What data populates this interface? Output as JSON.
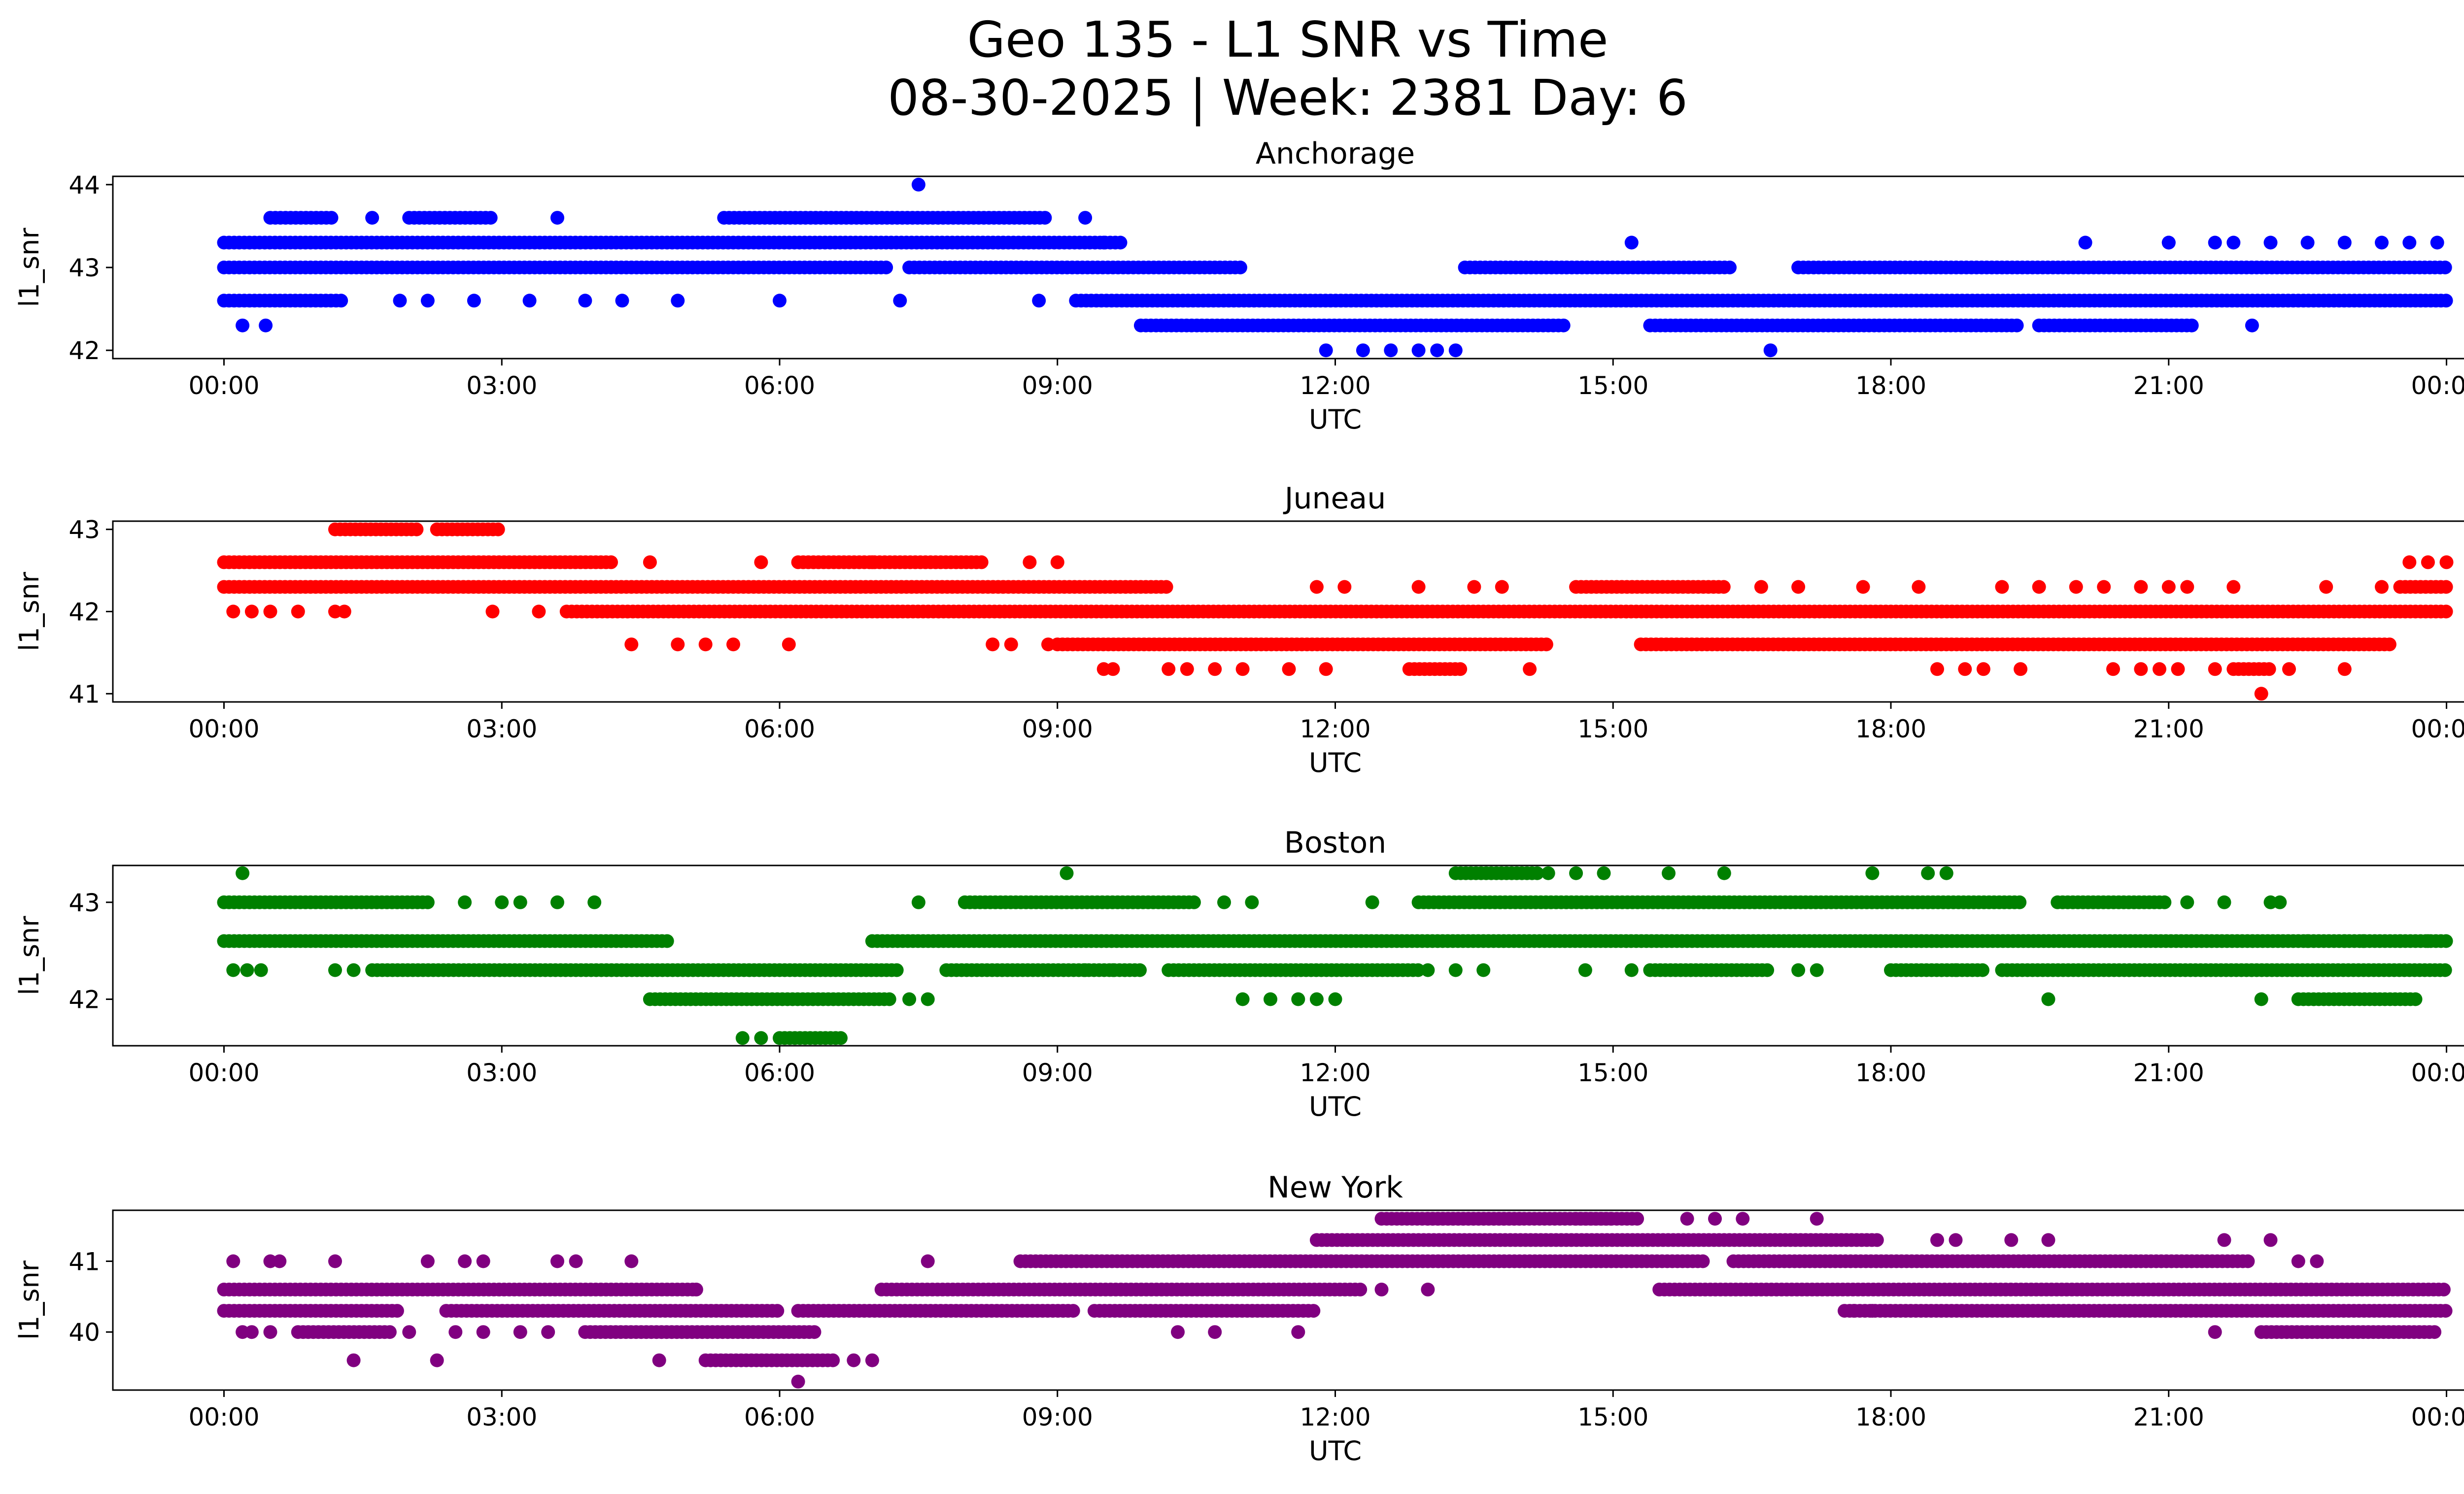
{
  "title_line1": "Geo 135 - L1 SNR vs Time",
  "title_line2": "08-30-2025 | Week: 2381 Day: 6",
  "chart_data": [
    {
      "type": "scatter",
      "title": "Anchorage",
      "xlabel": "UTC",
      "ylabel": "l1_snr",
      "color": "#0000ff",
      "xticks": [
        "00:00",
        "03:00",
        "06:00",
        "09:00",
        "12:00",
        "15:00",
        "18:00",
        "21:00",
        "00:00"
      ],
      "xlim_hours": [
        -1.2,
        25.2
      ],
      "ylim": [
        41.9,
        44.1
      ],
      "yticks": [
        42,
        43,
        44
      ],
      "levels": [
        {
          "y": 43.3,
          "runs": [
            [
              0,
              9.7
            ]
          ]
        },
        {
          "y": 43.0,
          "runs": [
            [
              0,
              7.2
            ],
            [
              7.4,
              11.0
            ],
            [
              13.4,
              16.3
            ],
            [
              17.0,
              24.0
            ]
          ]
        },
        {
          "y": 42.6,
          "runs": [
            [
              0,
              1.3
            ],
            [
              9.2,
              24.0
            ]
          ]
        },
        {
          "y": 42.3,
          "runs": [
            [
              9.9,
              14.5
            ],
            [
              15.4,
              19.4
            ],
            [
              19.6,
              21.3
            ]
          ]
        },
        {
          "y": 43.6,
          "runs": [
            [
              0.5,
              1.2
            ],
            [
              2.0,
              2.9
            ],
            [
              5.4,
              8.9
            ]
          ]
        }
      ],
      "sparse": [
        [
          0.2,
          42.3
        ],
        [
          0.45,
          42.3
        ],
        [
          1.6,
          43.6
        ],
        [
          1.9,
          42.6
        ],
        [
          2.2,
          42.6
        ],
        [
          2.7,
          42.6
        ],
        [
          3.3,
          42.6
        ],
        [
          3.6,
          43.6
        ],
        [
          3.9,
          42.6
        ],
        [
          4.3,
          42.6
        ],
        [
          4.9,
          42.6
        ],
        [
          6.0,
          42.6
        ],
        [
          7.3,
          42.6
        ],
        [
          7.5,
          44.0
        ],
        [
          8.8,
          42.6
        ],
        [
          9.3,
          43.6
        ],
        [
          9.5,
          43.3
        ],
        [
          11.9,
          42.0
        ],
        [
          12.3,
          42.0
        ],
        [
          12.6,
          42.0
        ],
        [
          12.9,
          42.0
        ],
        [
          13.1,
          42.0
        ],
        [
          13.3,
          42.0
        ],
        [
          15.2,
          43.3
        ],
        [
          16.7,
          42.0
        ],
        [
          20.1,
          43.3
        ],
        [
          21.0,
          43.3
        ],
        [
          21.9,
          42.3
        ],
        [
          21.0,
          43.3
        ],
        [
          22.1,
          43.3
        ],
        [
          22.5,
          43.3
        ],
        [
          22.9,
          43.3
        ],
        [
          23.3,
          43.3
        ],
        [
          23.6,
          43.3
        ],
        [
          23.9,
          43.3
        ],
        [
          21.5,
          43.3
        ],
        [
          21.7,
          43.3
        ]
      ]
    },
    {
      "type": "scatter",
      "title": "Juneau",
      "xlabel": "UTC",
      "ylabel": "l1_snr",
      "color": "#ff0000",
      "xticks": [
        "00:00",
        "03:00",
        "06:00",
        "09:00",
        "12:00",
        "15:00",
        "18:00",
        "21:00",
        "00:00"
      ],
      "xlim_hours": [
        -1.2,
        25.2
      ],
      "ylim": [
        40.9,
        43.1
      ],
      "yticks": [
        41,
        42,
        43
      ],
      "levels": [
        {
          "y": 42.6,
          "runs": [
            [
              0,
              4.2
            ],
            [
              6.2,
              8.2
            ]
          ]
        },
        {
          "y": 42.3,
          "runs": [
            [
              0,
              10.2
            ],
            [
              14.6,
              16.2
            ],
            [
              23.5,
              24.0
            ]
          ]
        },
        {
          "y": 42.0,
          "runs": [
            [
              3.7,
              24.0
            ]
          ]
        },
        {
          "y": 41.6,
          "runs": [
            [
              9.0,
              14.3
            ],
            [
              15.3,
              23.4
            ]
          ]
        },
        {
          "y": 43.0,
          "runs": [
            [
              1.2,
              2.1
            ],
            [
              2.3,
              3.0
            ]
          ]
        },
        {
          "y": 41.3,
          "runs": [
            [
              12.8,
              13.4
            ],
            [
              21.7,
              22.1
            ]
          ]
        }
      ],
      "sparse": [
        [
          0.1,
          42.0
        ],
        [
          0.3,
          42.0
        ],
        [
          0.5,
          42.0
        ],
        [
          0.8,
          42.0
        ],
        [
          1.2,
          42.0
        ],
        [
          1.3,
          42.0
        ],
        [
          2.9,
          42.0
        ],
        [
          3.4,
          42.0
        ],
        [
          4.4,
          41.6
        ],
        [
          4.6,
          42.6
        ],
        [
          4.9,
          41.6
        ],
        [
          5.2,
          41.6
        ],
        [
          5.5,
          41.6
        ],
        [
          5.8,
          42.6
        ],
        [
          6.1,
          41.6
        ],
        [
          7.0,
          42.6
        ],
        [
          8.3,
          41.6
        ],
        [
          8.5,
          41.6
        ],
        [
          8.7,
          42.6
        ],
        [
          8.9,
          41.6
        ],
        [
          9.0,
          42.6
        ],
        [
          9.5,
          41.3
        ],
        [
          9.6,
          41.3
        ],
        [
          10.2,
          41.3
        ],
        [
          10.4,
          41.3
        ],
        [
          10.7,
          41.3
        ],
        [
          11.0,
          41.3
        ],
        [
          11.5,
          41.3
        ],
        [
          11.8,
          42.3
        ],
        [
          11.9,
          41.3
        ],
        [
          12.9,
          42.3
        ],
        [
          12.1,
          42.3
        ],
        [
          13.5,
          42.3
        ],
        [
          13.8,
          42.3
        ],
        [
          14.1,
          41.3
        ],
        [
          16.6,
          42.3
        ],
        [
          17.0,
          42.3
        ],
        [
          17.7,
          42.3
        ],
        [
          18.3,
          42.3
        ],
        [
          18.5,
          41.3
        ],
        [
          18.8,
          41.3
        ],
        [
          19.0,
          41.3
        ],
        [
          19.2,
          42.3
        ],
        [
          19.4,
          41.3
        ],
        [
          19.6,
          42.3
        ],
        [
          20.0,
          42.3
        ],
        [
          20.3,
          42.3
        ],
        [
          20.4,
          41.3
        ],
        [
          20.7,
          41.3
        ],
        [
          20.9,
          41.3
        ],
        [
          21.1,
          41.3
        ],
        [
          21.2,
          42.3
        ],
        [
          21.5,
          41.3
        ],
        [
          21.7,
          42.3
        ],
        [
          22.0,
          41.0
        ],
        [
          22.3,
          41.3
        ],
        [
          22.7,
          42.3
        ],
        [
          22.9,
          41.3
        ],
        [
          23.3,
          42.3
        ],
        [
          23.6,
          42.6
        ],
        [
          23.8,
          42.6
        ],
        [
          24.0,
          42.6
        ],
        [
          20.7,
          42.3
        ],
        [
          21.0,
          42.3
        ]
      ]
    },
    {
      "type": "scatter",
      "title": "Boston",
      "xlabel": "UTC",
      "ylabel": "l1_snr",
      "color": "#008000",
      "xticks": [
        "00:00",
        "03:00",
        "06:00",
        "09:00",
        "12:00",
        "15:00",
        "18:00",
        "21:00",
        "00:00"
      ],
      "xlim_hours": [
        -1.2,
        25.2
      ],
      "ylim": [
        41.52,
        43.38
      ],
      "yticks": [
        42,
        43
      ],
      "levels": [
        {
          "y": 43.0,
          "runs": [
            [
              0,
              2.2
            ],
            [
              8.0,
              10.5
            ],
            [
              12.9,
              19.4
            ],
            [
              19.8,
              21.0
            ]
          ]
        },
        {
          "y": 42.6,
          "runs": [
            [
              0,
              4.8
            ],
            [
              7.0,
              24.0
            ]
          ]
        },
        {
          "y": 42.3,
          "runs": [
            [
              1.6,
              7.3
            ],
            [
              7.8,
              9.9
            ],
            [
              10.2,
              12.9
            ],
            [
              15.4,
              16.7
            ],
            [
              18.0,
              19.0
            ],
            [
              19.2,
              24.0
            ]
          ]
        },
        {
          "y": 42.0,
          "runs": [
            [
              4.6,
              7.2
            ],
            [
              22.4,
              23.7
            ]
          ]
        },
        {
          "y": 41.6,
          "runs": [
            [
              6.0,
              6.7
            ]
          ]
        },
        {
          "y": 43.3,
          "runs": [
            [
              13.3,
              14.2
            ]
          ]
        }
      ],
      "sparse": [
        [
          0.1,
          42.3
        ],
        [
          0.25,
          42.3
        ],
        [
          0.4,
          42.3
        ],
        [
          0.2,
          43.3
        ],
        [
          1.2,
          42.3
        ],
        [
          1.4,
          42.3
        ],
        [
          2.6,
          43.0
        ],
        [
          3.0,
          43.0
        ],
        [
          3.2,
          43.0
        ],
        [
          3.6,
          43.0
        ],
        [
          4.0,
          43.0
        ],
        [
          5.6,
          41.6
        ],
        [
          5.8,
          41.6
        ],
        [
          7.4,
          42.0
        ],
        [
          7.6,
          42.0
        ],
        [
          7.5,
          43.0
        ],
        [
          9.1,
          43.3
        ],
        [
          9.3,
          42.3
        ],
        [
          9.6,
          42.3
        ],
        [
          10.8,
          43.0
        ],
        [
          11.0,
          42.0
        ],
        [
          11.3,
          42.0
        ],
        [
          11.1,
          43.0
        ],
        [
          11.6,
          42.0
        ],
        [
          11.8,
          42.0
        ],
        [
          12.0,
          42.0
        ],
        [
          12.4,
          43.0
        ],
        [
          13.0,
          42.3
        ],
        [
          13.3,
          42.3
        ],
        [
          13.6,
          42.3
        ],
        [
          14.3,
          43.3
        ],
        [
          14.6,
          43.3
        ],
        [
          14.9,
          43.3
        ],
        [
          14.7,
          42.3
        ],
        [
          15.2,
          42.3
        ],
        [
          15.6,
          43.3
        ],
        [
          16.2,
          43.3
        ],
        [
          17.0,
          42.3
        ],
        [
          17.2,
          42.3
        ],
        [
          17.8,
          43.3
        ],
        [
          18.4,
          43.3
        ],
        [
          18.6,
          43.3
        ],
        [
          18.7,
          42.3
        ],
        [
          19.7,
          42.0
        ],
        [
          21.2,
          43.0
        ],
        [
          21.6,
          43.0
        ],
        [
          22.1,
          43.0
        ],
        [
          22.2,
          43.0
        ],
        [
          22.0,
          42.0
        ],
        [
          22.5,
          42.6
        ],
        [
          22.9,
          42.6
        ],
        [
          23.1,
          42.6
        ],
        [
          23.5,
          42.6
        ],
        [
          23.8,
          42.6
        ]
      ]
    },
    {
      "type": "scatter",
      "title": "New York",
      "xlabel": "UTC",
      "ylabel": "l1_snr",
      "color": "#800080",
      "xticks": [
        "00:00",
        "03:00",
        "06:00",
        "09:00",
        "12:00",
        "15:00",
        "18:00",
        "21:00",
        "00:00"
      ],
      "xlim_hours": [
        -1.2,
        25.2
      ],
      "ylim": [
        39.18,
        41.72
      ],
      "yticks": [
        40,
        41
      ],
      "levels": [
        {
          "y": 40.6,
          "runs": [
            [
              0,
              5.1
            ],
            [
              7.1,
              12.3
            ],
            [
              15.5,
              24.0
            ]
          ]
        },
        {
          "y": 40.3,
          "runs": [
            [
              0,
              1.9
            ],
            [
              2.4,
              6.0
            ],
            [
              6.2,
              9.2
            ],
            [
              9.4,
              11.8
            ],
            [
              17.5,
              24.0
            ]
          ]
        },
        {
          "y": 40.0,
          "runs": [
            [
              0.8,
              1.8
            ],
            [
              3.9,
              6.4
            ],
            [
              22.0,
              23.9
            ]
          ]
        },
        {
          "y": 41.0,
          "runs": [
            [
              8.6,
              16.0
            ],
            [
              16.3,
              21.9
            ]
          ]
        },
        {
          "y": 41.3,
          "runs": [
            [
              11.8,
              17.9
            ]
          ]
        },
        {
          "y": 41.6,
          "runs": [
            [
              12.5,
              15.0
            ],
            [
              13.0,
              14.0
            ],
            [
              14.6,
              15.3
            ]
          ]
        },
        {
          "y": 39.6,
          "runs": [
            [
              5.2,
              6.6
            ]
          ]
        }
      ],
      "sparse": [
        [
          0.1,
          41.0
        ],
        [
          0.2,
          40.0
        ],
        [
          0.3,
          40.0
        ],
        [
          0.5,
          41.0
        ],
        [
          0.6,
          41.0
        ],
        [
          0.5,
          40.0
        ],
        [
          1.2,
          41.0
        ],
        [
          1.4,
          39.6
        ],
        [
          2.2,
          41.0
        ],
        [
          2.3,
          39.6
        ],
        [
          2.6,
          41.0
        ],
        [
          2.8,
          41.0
        ],
        [
          2.0,
          40.0
        ],
        [
          2.5,
          40.0
        ],
        [
          2.8,
          40.0
        ],
        [
          3.2,
          40.0
        ],
        [
          3.6,
          41.0
        ],
        [
          3.8,
          41.0
        ],
        [
          3.5,
          40.0
        ],
        [
          4.4,
          41.0
        ],
        [
          4.7,
          39.6
        ],
        [
          5.1,
          40.6
        ],
        [
          6.2,
          39.3
        ],
        [
          6.8,
          39.6
        ],
        [
          7.0,
          39.6
        ],
        [
          7.6,
          41.0
        ],
        [
          10.3,
          40.0
        ],
        [
          10.7,
          40.0
        ],
        [
          11.6,
          40.0
        ],
        [
          12.5,
          40.6
        ],
        [
          13.0,
          40.6
        ],
        [
          15.8,
          41.6
        ],
        [
          16.1,
          41.6
        ],
        [
          16.4,
          41.6
        ],
        [
          17.2,
          41.6
        ],
        [
          17.6,
          40.3
        ],
        [
          17.8,
          40.3
        ],
        [
          18.5,
          41.3
        ],
        [
          18.7,
          41.3
        ],
        [
          19.3,
          41.3
        ],
        [
          19.7,
          41.3
        ],
        [
          21.6,
          41.3
        ],
        [
          21.5,
          40.0
        ],
        [
          22.1,
          41.3
        ],
        [
          22.4,
          41.0
        ],
        [
          22.6,
          41.0
        ]
      ]
    }
  ]
}
